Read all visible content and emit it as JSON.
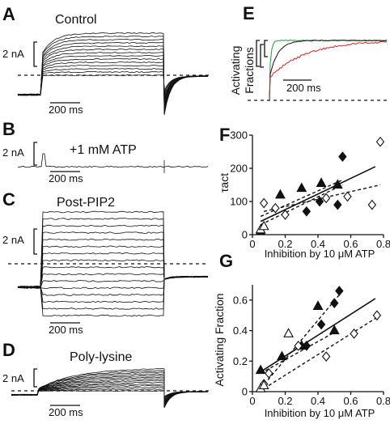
{
  "panels": {
    "A": {
      "letter": "A",
      "title": "Control",
      "scale_label": "2 nA",
      "time_label": "200 ms"
    },
    "B": {
      "letter": "B",
      "title": "+1 mM ATP",
      "scale_label": "2 nA",
      "time_label": "200 ms"
    },
    "C": {
      "letter": "C",
      "title": "Post-PIP2",
      "title_color": "#1a9a3c",
      "scale_label": "2 nA",
      "time_label": "200 ms"
    },
    "D": {
      "letter": "D",
      "title": "Poly-lysine",
      "title_color": "#e0201e",
      "scale_label": "2 nA",
      "time_label": "200 ms"
    },
    "E": {
      "letter": "E",
      "ylabel_line1": "Activating",
      "ylabel_line2": "Fractions",
      "time_label": "200 ms",
      "trace_colors": [
        "#1a9a3c",
        "#111111",
        "#e0201e"
      ]
    },
    "F": {
      "letter": "F"
    },
    "G": {
      "letter": "G"
    }
  },
  "chart_data": [
    {
      "panel": "F",
      "type": "scatter",
      "xlabel": "Inhibition by 10 μM ATP",
      "ylabel": "τact",
      "xlim": [
        0,
        0.8
      ],
      "ylim": [
        0,
        300
      ],
      "xticks": [
        "0",
        "0.2",
        "0.4",
        "0.6",
        "0.8"
      ],
      "yticks": [
        "0",
        "100",
        "200",
        "300"
      ],
      "series": [
        {
          "marker": "filled-triangle",
          "x": [
            0.05,
            0.17,
            0.3,
            0.42,
            0.52
          ],
          "y": [
            10,
            120,
            140,
            155,
            150
          ]
        },
        {
          "marker": "filled-diamond",
          "x": [
            0.33,
            0.41,
            0.52,
            0.55
          ],
          "y": [
            70,
            100,
            90,
            235
          ]
        },
        {
          "marker": "open-diamond",
          "x": [
            0.07,
            0.14,
            0.2,
            0.45,
            0.58,
            0.73,
            0.78
          ],
          "y": [
            95,
            80,
            60,
            110,
            115,
            90,
            280
          ]
        },
        {
          "marker": "open-triangle",
          "x": [
            0.05,
            0.07
          ],
          "y": [
            15,
            25
          ]
        }
      ],
      "fit_lines": [
        {
          "style": "solid",
          "x": [
            0.05,
            0.75
          ],
          "y": [
            40,
            205
          ]
        },
        {
          "style": "dashed",
          "x": [
            0.05,
            0.55
          ],
          "y": [
            55,
            165
          ]
        },
        {
          "style": "dashed",
          "x": [
            0.05,
            0.55
          ],
          "y": [
            30,
            150
          ]
        },
        {
          "style": "dashed",
          "x": [
            0.07,
            0.78
          ],
          "y": [
            70,
            150
          ]
        }
      ]
    },
    {
      "panel": "G",
      "type": "scatter",
      "xlabel": "Inhibition by 10 μM ATP",
      "ylabel": "Activating Fraction",
      "xlim": [
        0,
        0.8
      ],
      "ylim": [
        0,
        0.7
      ],
      "xticks": [
        "0",
        "0.2",
        "0.4",
        "0.6",
        "0.8"
      ],
      "yticks": [
        "0",
        "0.2",
        "0.4",
        "0.6"
      ],
      "series": [
        {
          "marker": "filled-triangle",
          "x": [
            0.05,
            0.18,
            0.3,
            0.4,
            0.5
          ],
          "y": [
            0.14,
            0.23,
            0.3,
            0.56,
            0.4
          ]
        },
        {
          "marker": "filled-diamond",
          "x": [
            0.33,
            0.42,
            0.5,
            0.53
          ],
          "y": [
            0.3,
            0.44,
            0.58,
            0.66
          ]
        },
        {
          "marker": "open-diamond",
          "x": [
            0.07,
            0.1,
            0.28,
            0.45,
            0.62,
            0.76
          ],
          "y": [
            0.05,
            0.12,
            0.3,
            0.23,
            0.38,
            0.5
          ]
        },
        {
          "marker": "open-triangle",
          "x": [
            0.05,
            0.07,
            0.22
          ],
          "y": [
            0.02,
            0.04,
            0.38
          ]
        }
      ],
      "fit_lines": [
        {
          "style": "solid",
          "x": [
            0.05,
            0.75
          ],
          "y": [
            0.13,
            0.61
          ]
        },
        {
          "style": "dashed",
          "x": [
            0.05,
            0.55
          ],
          "y": [
            0.02,
            0.66
          ]
        },
        {
          "style": "dashed",
          "x": [
            0.05,
            0.52
          ],
          "y": [
            0.12,
            0.4
          ]
        },
        {
          "style": "dashed",
          "x": [
            0.07,
            0.78
          ],
          "y": [
            0.02,
            0.5
          ]
        }
      ]
    }
  ]
}
